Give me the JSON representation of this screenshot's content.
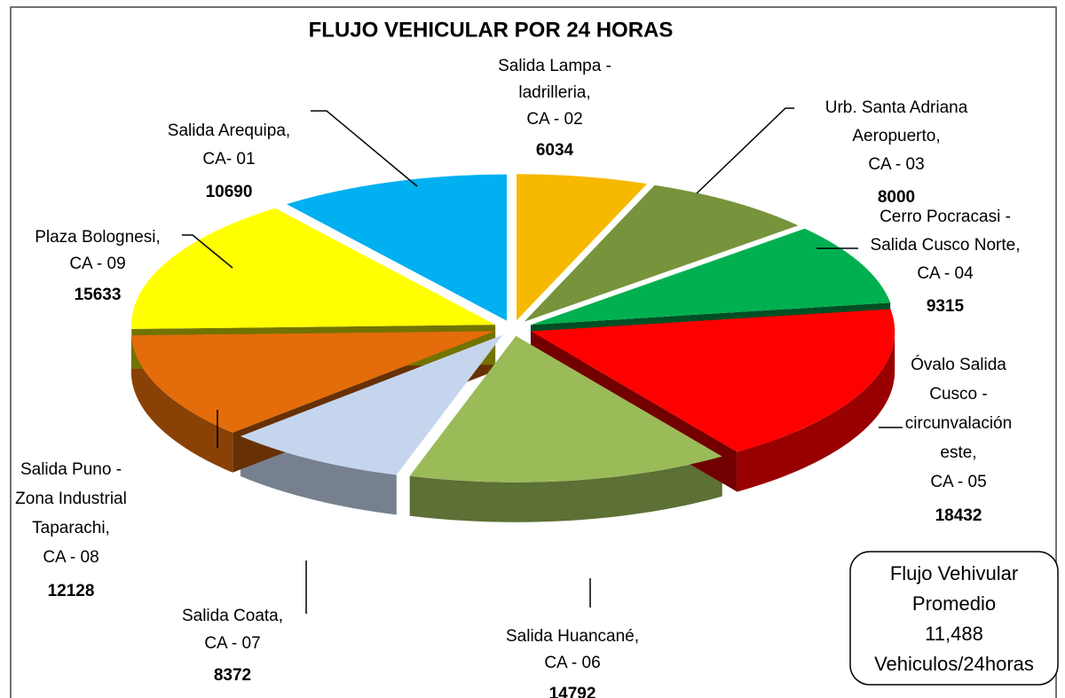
{
  "chart_data": {
    "type": "pie3d",
    "title": "FLUJO VEHICULAR POR 24 HORAS",
    "categories": [
      [
        "Salida Lampa -",
        "ladrilleria,",
        "CA - 02"
      ],
      [
        "Urb.  Santa Adriana",
        "Aeropuerto,",
        "CA - 03"
      ],
      [
        "Cerro Pocracasi -",
        "Salida Cusco Norte,",
        "CA - 04"
      ],
      [
        "Óvalo Salida",
        "Cusco -",
        "circunvalación",
        "este,",
        "CA - 05"
      ],
      [
        "Salida Huancané,",
        "CA - 06"
      ],
      [
        "Salida Coata,",
        "CA - 07"
      ],
      [
        "Salida Puno -",
        "Zona Industrial",
        "Taparachi,",
        "CA - 08"
      ],
      [
        "Plaza Bolognesi,",
        "CA - 09"
      ],
      [
        "Salida Arequipa,",
        "CA- 01"
      ]
    ],
    "values": [
      6034,
      8000,
      9315,
      18432,
      14792,
      8372,
      12128,
      15633,
      10690
    ],
    "colors": [
      "#f7b800",
      "#77933c",
      "#00b050",
      "#ff0000",
      "#9bbb59",
      "#c6d5ee",
      "#e46c0a",
      "#ffff00",
      "#00b0f0"
    ],
    "annotation": [
      "Flujo Vehivular",
      "Promedio",
      "11,488",
      "Vehiculos/24horas"
    ]
  }
}
